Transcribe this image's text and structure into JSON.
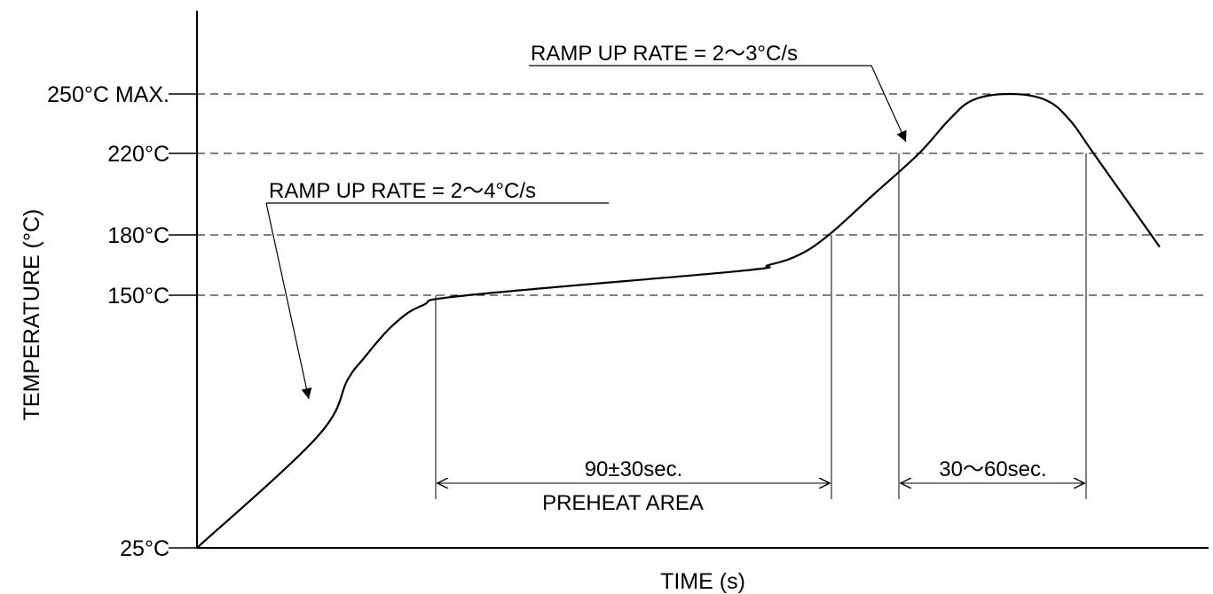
{
  "chart_data": {
    "type": "line",
    "xlabel": "TIME (s)",
    "ylabel": "TEMPERATURE (°C)",
    "y_ticks": [
      {
        "value": 25,
        "label": "25°C"
      },
      {
        "value": 150,
        "label": "150°C"
      },
      {
        "value": 180,
        "label": "180°C"
      },
      {
        "value": 220,
        "label": "220°C"
      },
      {
        "value": 250,
        "label": "250°C MAX."
      }
    ],
    "series": [
      {
        "values": [
          {
            "t": 0,
            "temp": 25
          },
          {
            "t": 40,
            "temp": 80
          },
          {
            "t": 50,
            "temp": 108
          },
          {
            "t": 55,
            "temp": 118
          },
          {
            "t": 65,
            "temp": 135
          },
          {
            "t": 75,
            "temp": 145
          },
          {
            "t": 90,
            "temp": 150
          },
          {
            "t": 180,
            "temp": 162
          },
          {
            "t": 190,
            "temp": 165
          },
          {
            "t": 200,
            "temp": 170
          },
          {
            "t": 210,
            "temp": 180
          },
          {
            "t": 225,
            "temp": 200
          },
          {
            "t": 240,
            "temp": 220
          },
          {
            "t": 250,
            "temp": 237
          },
          {
            "t": 258,
            "temp": 247
          },
          {
            "t": 270,
            "temp": 250
          },
          {
            "t": 282,
            "temp": 247
          },
          {
            "t": 290,
            "temp": 237
          },
          {
            "t": 298,
            "temp": 220
          },
          {
            "t": 320,
            "temp": 174
          }
        ]
      }
    ],
    "annotations": {
      "ramp1": "RAMP UP RATE = 2～4°C/s",
      "ramp2": "RAMP UP RATE = 2～3°C/s",
      "preheat_time": "90±30sec.",
      "preheat_area": "PREHEAT AREA",
      "peak_time": "30～60sec."
    },
    "grid": "dashed horizontal at tick temperatures"
  }
}
